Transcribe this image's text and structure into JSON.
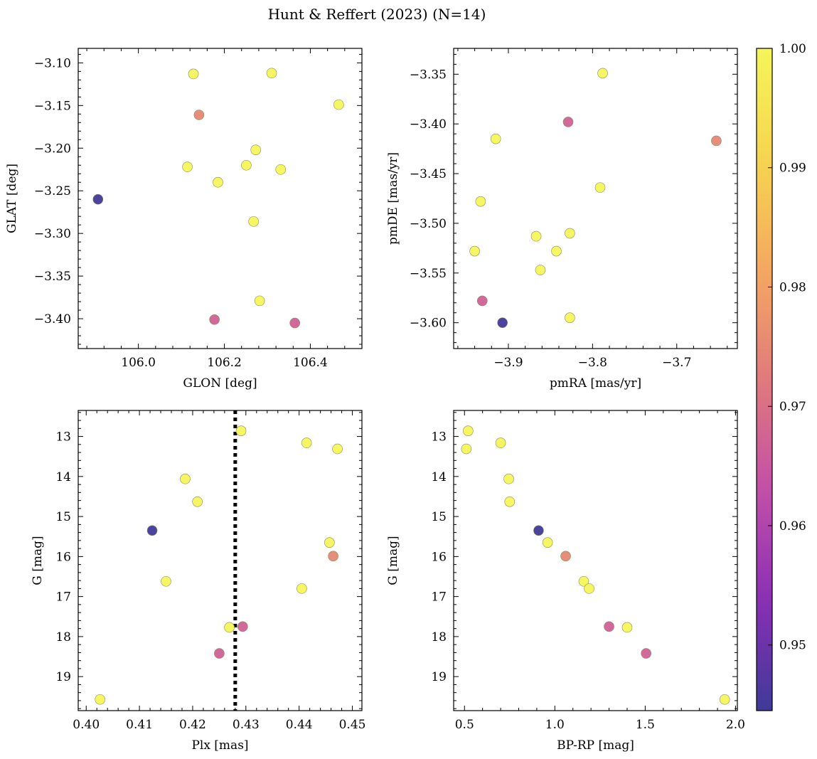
{
  "title": "Hunt & Reffert (2023) (N=14)",
  "chart_data": [
    {
      "type": "scatter",
      "panel": "top-left",
      "xlabel": "GLON [deg]",
      "ylabel": "GLAT [deg]",
      "xlim": [
        105.86,
        106.52
      ],
      "ylim": [
        -3.435,
        -3.083
      ],
      "y_inverted": false,
      "xticks": [
        106.0,
        106.2,
        106.4
      ],
      "xtick_labels": [
        "106.0",
        "106.2",
        "106.4"
      ],
      "yticks": [
        -3.1,
        -3.15,
        -3.2,
        -3.25,
        -3.3,
        -3.35,
        -3.4
      ],
      "ytick_labels": [
        "−3.10",
        "−3.15",
        "−3.20",
        "−3.25",
        "−3.30",
        "−3.35",
        "−3.40"
      ],
      "points": [
        {
          "x": 106.128,
          "y": -3.113,
          "c": 1.0
        },
        {
          "x": 106.31,
          "y": -3.112,
          "c": 1.0
        },
        {
          "x": 106.466,
          "y": -3.149,
          "c": 1.0
        },
        {
          "x": 106.141,
          "y": -3.161,
          "c": 0.975
        },
        {
          "x": 106.273,
          "y": -3.202,
          "c": 1.0
        },
        {
          "x": 106.114,
          "y": -3.222,
          "c": 1.0
        },
        {
          "x": 106.251,
          "y": -3.22,
          "c": 1.0
        },
        {
          "x": 106.331,
          "y": -3.225,
          "c": 1.0
        },
        {
          "x": 106.185,
          "y": -3.24,
          "c": 1.0
        },
        {
          "x": 105.906,
          "y": -3.26,
          "c": 0.945
        },
        {
          "x": 106.268,
          "y": -3.286,
          "c": 1.0
        },
        {
          "x": 106.282,
          "y": -3.379,
          "c": 1.0
        },
        {
          "x": 106.177,
          "y": -3.401,
          "c": 0.967
        },
        {
          "x": 106.364,
          "y": -3.405,
          "c": 0.967
        }
      ]
    },
    {
      "type": "scatter",
      "panel": "top-right",
      "xlabel": "pmRA [mas/yr]",
      "ylabel": "pmDE [mas/yr]",
      "xlim": [
        -3.965,
        -3.628
      ],
      "ylim": [
        -3.626,
        -3.324
      ],
      "y_inverted": false,
      "xticks": [
        -3.9,
        -3.8,
        -3.7
      ],
      "xtick_labels": [
        "−3.9",
        "−3.8",
        "−3.7"
      ],
      "yticks": [
        -3.35,
        -3.4,
        -3.45,
        -3.5,
        -3.55,
        -3.6
      ],
      "ytick_labels": [
        "−3.35",
        "−3.40",
        "−3.45",
        "−3.50",
        "−3.55",
        "−3.60"
      ],
      "points": [
        {
          "x": -3.788,
          "y": -3.349,
          "c": 1.0
        },
        {
          "x": -3.829,
          "y": -3.398,
          "c": 0.967
        },
        {
          "x": -3.653,
          "y": -3.417,
          "c": 0.975
        },
        {
          "x": -3.915,
          "y": -3.415,
          "c": 1.0
        },
        {
          "x": -3.791,
          "y": -3.464,
          "c": 1.0
        },
        {
          "x": -3.933,
          "y": -3.478,
          "c": 1.0
        },
        {
          "x": -3.867,
          "y": -3.513,
          "c": 1.0
        },
        {
          "x": -3.827,
          "y": -3.51,
          "c": 1.0
        },
        {
          "x": -3.843,
          "y": -3.528,
          "c": 1.0
        },
        {
          "x": -3.94,
          "y": -3.528,
          "c": 1.0
        },
        {
          "x": -3.862,
          "y": -3.547,
          "c": 1.0
        },
        {
          "x": -3.931,
          "y": -3.578,
          "c": 0.967
        },
        {
          "x": -3.827,
          "y": -3.595,
          "c": 1.0
        },
        {
          "x": -3.907,
          "y": -3.6,
          "c": 0.945
        }
      ]
    },
    {
      "type": "scatter",
      "panel": "bottom-left",
      "xlabel": "Plx [mas]",
      "ylabel": "G [mag]",
      "xlim": [
        0.3985,
        0.4518
      ],
      "ylim": [
        19.85,
        12.35
      ],
      "y_inverted": true,
      "xticks": [
        0.4,
        0.41,
        0.42,
        0.43,
        0.44,
        0.45
      ],
      "xtick_labels": [
        "0.40",
        "0.41",
        "0.42",
        "0.43",
        "0.44",
        "0.45"
      ],
      "yticks": [
        13,
        14,
        15,
        16,
        17,
        18,
        19
      ],
      "ytick_labels": [
        "13",
        "14",
        "15",
        "16",
        "17",
        "18",
        "19"
      ],
      "vline": {
        "x": 0.428,
        "style": "dotted"
      },
      "points": [
        {
          "x": 0.4291,
          "y": 12.86,
          "c": 1.0
        },
        {
          "x": 0.4414,
          "y": 13.16,
          "c": 1.0
        },
        {
          "x": 0.4472,
          "y": 13.31,
          "c": 1.0
        },
        {
          "x": 0.4186,
          "y": 14.06,
          "c": 1.0
        },
        {
          "x": 0.4209,
          "y": 14.63,
          "c": 1.0
        },
        {
          "x": 0.4124,
          "y": 15.35,
          "c": 0.945
        },
        {
          "x": 0.4457,
          "y": 15.65,
          "c": 1.0
        },
        {
          "x": 0.4464,
          "y": 15.99,
          "c": 0.975
        },
        {
          "x": 0.415,
          "y": 16.62,
          "c": 1.0
        },
        {
          "x": 0.4405,
          "y": 16.8,
          "c": 1.0
        },
        {
          "x": 0.4269,
          "y": 17.77,
          "c": 1.0
        },
        {
          "x": 0.4294,
          "y": 17.75,
          "c": 0.967
        },
        {
          "x": 0.425,
          "y": 18.42,
          "c": 0.967
        },
        {
          "x": 0.4026,
          "y": 19.57,
          "c": 1.0
        }
      ]
    },
    {
      "type": "scatter",
      "panel": "bottom-right",
      "xlabel": "BP-RP [mag]",
      "ylabel": "G [mag]",
      "xlim": [
        0.44,
        2.01
      ],
      "ylim": [
        19.85,
        12.35
      ],
      "y_inverted": true,
      "xticks": [
        0.5,
        1.0,
        1.5,
        2.0
      ],
      "xtick_labels": [
        "0.5",
        "1.0",
        "1.5",
        "2.0"
      ],
      "yticks": [
        13,
        14,
        15,
        16,
        17,
        18,
        19
      ],
      "ytick_labels": [
        "13",
        "14",
        "15",
        "16",
        "17",
        "18",
        "19"
      ],
      "points": [
        {
          "x": 0.52,
          "y": 12.86,
          "c": 1.0
        },
        {
          "x": 0.7,
          "y": 13.16,
          "c": 1.0
        },
        {
          "x": 0.51,
          "y": 13.31,
          "c": 1.0
        },
        {
          "x": 0.745,
          "y": 14.06,
          "c": 1.0
        },
        {
          "x": 0.75,
          "y": 14.63,
          "c": 1.0
        },
        {
          "x": 0.91,
          "y": 15.35,
          "c": 0.945
        },
        {
          "x": 0.96,
          "y": 15.65,
          "c": 1.0
        },
        {
          "x": 1.06,
          "y": 15.99,
          "c": 0.975
        },
        {
          "x": 1.16,
          "y": 16.62,
          "c": 1.0
        },
        {
          "x": 1.19,
          "y": 16.8,
          "c": 1.0
        },
        {
          "x": 1.3,
          "y": 17.75,
          "c": 0.967
        },
        {
          "x": 1.4,
          "y": 17.77,
          "c": 1.0
        },
        {
          "x": 1.505,
          "y": 18.42,
          "c": 0.967
        },
        {
          "x": 1.94,
          "y": 19.57,
          "c": 1.0
        }
      ]
    }
  ],
  "colorbar": {
    "colormap": "plasma",
    "vmin": 0.9445,
    "vmax": 1.0,
    "ticks": [
      0.95,
      0.96,
      0.97,
      0.98,
      0.99,
      1.0
    ],
    "tick_labels": [
      "0.95",
      "0.96",
      "0.97",
      "0.98",
      "0.99",
      "1.00"
    ]
  },
  "colors": {
    "plasma_stops": [
      "#3e3a98",
      "#8a2fb5",
      "#c24fa8",
      "#e07a7c",
      "#f5a861",
      "#f6d54f",
      "#f5f55a"
    ]
  }
}
